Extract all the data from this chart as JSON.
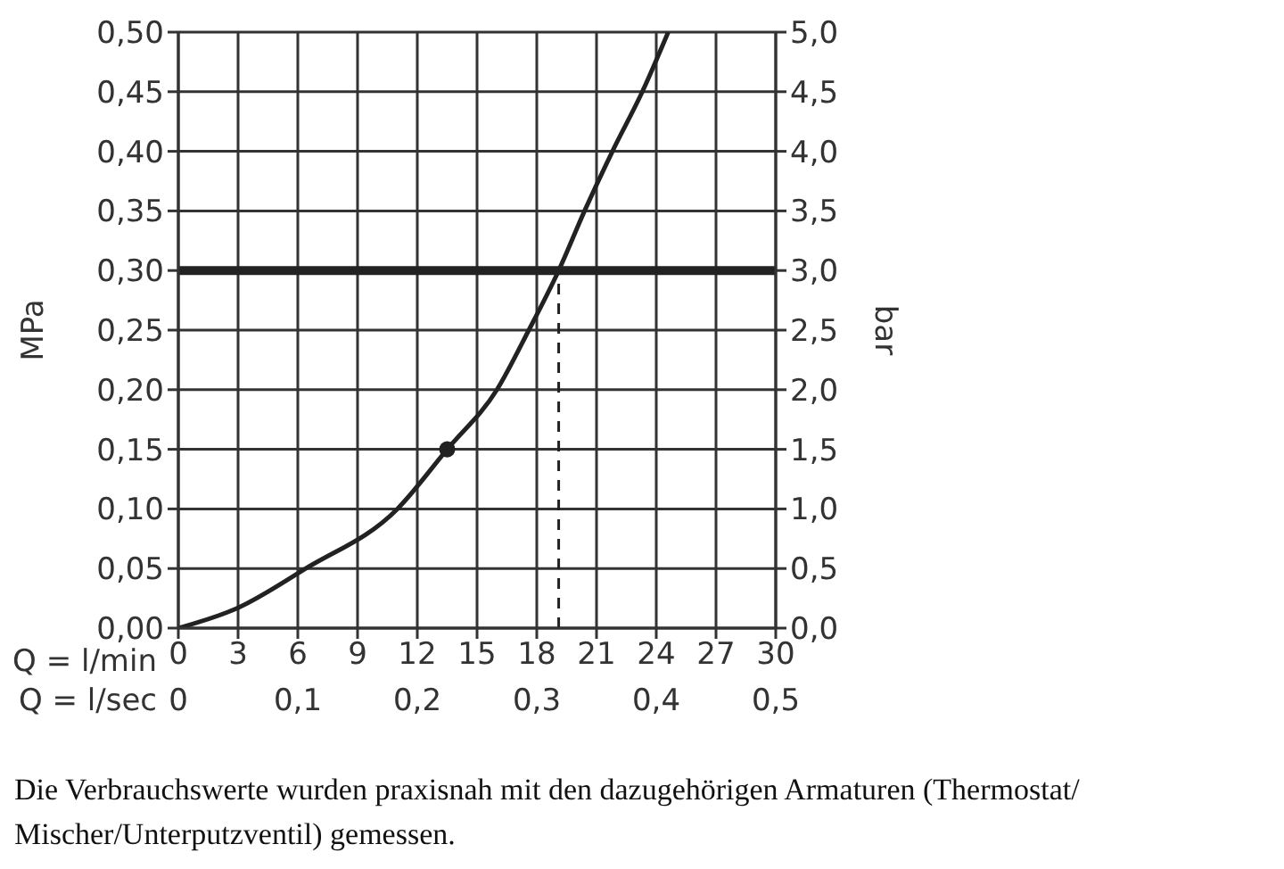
{
  "chart_data": {
    "type": "line",
    "xlabel": "Q = l/min",
    "x2label": "Q = l/sec",
    "ylabel": "MPa",
    "y2label": "bar",
    "xlim": [
      0,
      30
    ],
    "xticks": [
      0,
      3,
      6,
      9,
      12,
      15,
      18,
      21,
      24,
      27,
      30
    ],
    "x2lim": [
      0,
      0.5
    ],
    "x2ticks": [
      0,
      {
        "value": 0.1,
        "label": "0,1"
      },
      {
        "value": 0.2,
        "label": "0,2"
      },
      {
        "value": 0.3,
        "label": "0,3"
      },
      {
        "value": 0.4,
        "label": "0,4"
      },
      {
        "value": 0.5,
        "label": "0,5"
      }
    ],
    "ylim": [
      0,
      0.5
    ],
    "yticks": [
      {
        "value": 0,
        "label": "0,00"
      },
      {
        "value": 0.05,
        "label": "0,05"
      },
      {
        "value": 0.1,
        "label": "0,10"
      },
      {
        "value": 0.15,
        "label": "0,15"
      },
      {
        "value": 0.2,
        "label": "0,20"
      },
      {
        "value": 0.25,
        "label": "0,25"
      },
      {
        "value": 0.3,
        "label": "0,30"
      },
      {
        "value": 0.35,
        "label": "0,35"
      },
      {
        "value": 0.4,
        "label": "0,40"
      },
      {
        "value": 0.45,
        "label": "0,45"
      },
      {
        "value": 0.5,
        "label": "0,50"
      }
    ],
    "y2lim": [
      0,
      5
    ],
    "y2ticks": [
      {
        "value": 0,
        "label": "0,0"
      },
      {
        "value": 0.5,
        "label": "0,5"
      },
      {
        "value": 1,
        "label": "1,0"
      },
      {
        "value": 1.5,
        "label": "1,5"
      },
      {
        "value": 2,
        "label": "2,0"
      },
      {
        "value": 2.5,
        "label": "2,5"
      },
      {
        "value": 3,
        "label": "3,0"
      },
      {
        "value": 3.5,
        "label": "3,5"
      },
      {
        "value": 4,
        "label": "4,0"
      },
      {
        "value": 4.5,
        "label": "4,5"
      },
      {
        "value": 5,
        "label": "5,0"
      }
    ],
    "grid": true,
    "legend": false,
    "series": [
      {
        "color": "#222222",
        "marker": "none",
        "x": [
          0,
          3,
          6.4,
          11,
          13.5,
          16,
          17.6,
          19.1,
          20.4,
          21.8,
          23.3,
          24.6
        ],
        "values": [
          0,
          0.017,
          0.05,
          0.1,
          0.15,
          0.2,
          0.25,
          0.3,
          0.35,
          0.4,
          0.45,
          0.5
        ]
      },
      {
        "type": "scatter",
        "color": "#222222",
        "marker": "circle",
        "x": [
          13.5
        ],
        "values": [
          0.15
        ]
      }
    ],
    "ref_lines": [
      {
        "axis": "y",
        "value": 0.3,
        "color": "#222222",
        "line_style": "solid"
      },
      {
        "axis": "x",
        "value": 19.1,
        "color": "#222222",
        "line_style": "dashed"
      }
    ],
    "annotations": [
      "Die Verbrauchswerte wurden praxisnah mit den dazugehörigen Armaturen (Thermostat/ Mischer/Unterputzventil) gemessen."
    ]
  }
}
